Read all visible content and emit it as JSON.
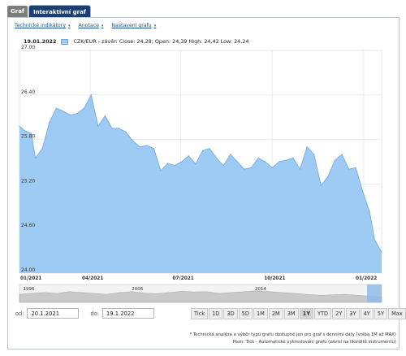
{
  "tabs": [
    {
      "label": "Graf",
      "active": false
    },
    {
      "label": "Interaktivní graf",
      "active": true
    }
  ],
  "toolbar": {
    "indicators": "Technické indikátory",
    "annotations": "Anotace",
    "settings": "Nastavení grafu"
  },
  "header": {
    "date": "19.01.2022",
    "legend": "CZK/EUR - závěr: Close: 24,28; Open: 24,39 High: 24,42 Low: 24,24",
    "series_color": "#9ecbf3",
    "line_color": "#6aa7e0"
  },
  "range": {
    "from_label": "od:",
    "from_value": "20.1.2021",
    "to_label": "do:",
    "to_value": "19.1.2022"
  },
  "periods": [
    "Tick",
    "1D",
    "3D",
    "5D",
    "1M",
    "2M",
    "3M",
    "1Y",
    "YTD",
    "2Y",
    "3Y",
    "4Y",
    "5Y",
    "Max"
  ],
  "selected_period": "1Y",
  "navigator": {
    "labels": [
      "1996",
      "2006",
      "2014"
    ]
  },
  "footnotes": [
    "* Technická analýza a výběr typu grafu dostupné jen pro graf s denními daty (volba 1M až MAX)",
    "Pozn: Tick - Automatické vykreslování grafu (závisí na likviditě instrumentu)"
  ],
  "chart_data": {
    "type": "area",
    "xlabel": "",
    "ylabel": "",
    "ylim": [
      24.0,
      27.0
    ],
    "yticks": [
      "27.00",
      "26.40",
      "25.80",
      "25.20",
      "24.60",
      "24.00"
    ],
    "xticks": [
      "01/2021",
      "04/2021",
      "07/2021",
      "10/2021",
      "01/2022"
    ],
    "x": [
      "20.1.2021",
      "25.1.2021",
      "1.2.2021",
      "5.2.2021",
      "12.2.2021",
      "19.2.2021",
      "26.2.2021",
      "5.3.2021",
      "12.3.2021",
      "19.3.2021",
      "26.3.2021",
      "2.4.2021",
      "9.4.2021",
      "16.4.2021",
      "23.4.2021",
      "30.4.2021",
      "7.5.2021",
      "14.5.2021",
      "21.5.2021",
      "28.5.2021",
      "4.6.2021",
      "11.6.2021",
      "18.6.2021",
      "25.6.2021",
      "2.7.2021",
      "9.7.2021",
      "16.7.2021",
      "23.7.2021",
      "30.7.2021",
      "6.8.2021",
      "13.8.2021",
      "20.8.2021",
      "27.8.2021",
      "3.9.2021",
      "10.9.2021",
      "17.9.2021",
      "24.9.2021",
      "1.10.2021",
      "8.10.2021",
      "15.10.2021",
      "22.10.2021",
      "29.10.2021",
      "5.11.2021",
      "12.11.2021",
      "19.11.2021",
      "26.11.2021",
      "3.12.2021",
      "10.12.2021",
      "17.12.2021",
      "24.12.2021",
      "31.12.2021",
      "7.1.2022",
      "12.1.2022",
      "19.1.2022"
    ],
    "series": [
      {
        "values": [
          25.98,
          25.92,
          25.88,
          25.55,
          25.68,
          26.03,
          26.22,
          26.18,
          26.13,
          26.15,
          26.22,
          26.4,
          25.98,
          26.12,
          25.95,
          25.95,
          25.9,
          25.78,
          25.7,
          25.72,
          25.68,
          25.38,
          25.48,
          25.45,
          25.5,
          25.58,
          25.47,
          25.65,
          25.68,
          25.55,
          25.45,
          25.6,
          25.5,
          25.4,
          25.42,
          25.55,
          25.5,
          25.42,
          25.5,
          25.52,
          25.55,
          25.4,
          25.7,
          25.6,
          25.18,
          25.3,
          25.52,
          25.6,
          25.4,
          25.42,
          25.1,
          24.82,
          24.45,
          24.28
        ]
      }
    ]
  }
}
